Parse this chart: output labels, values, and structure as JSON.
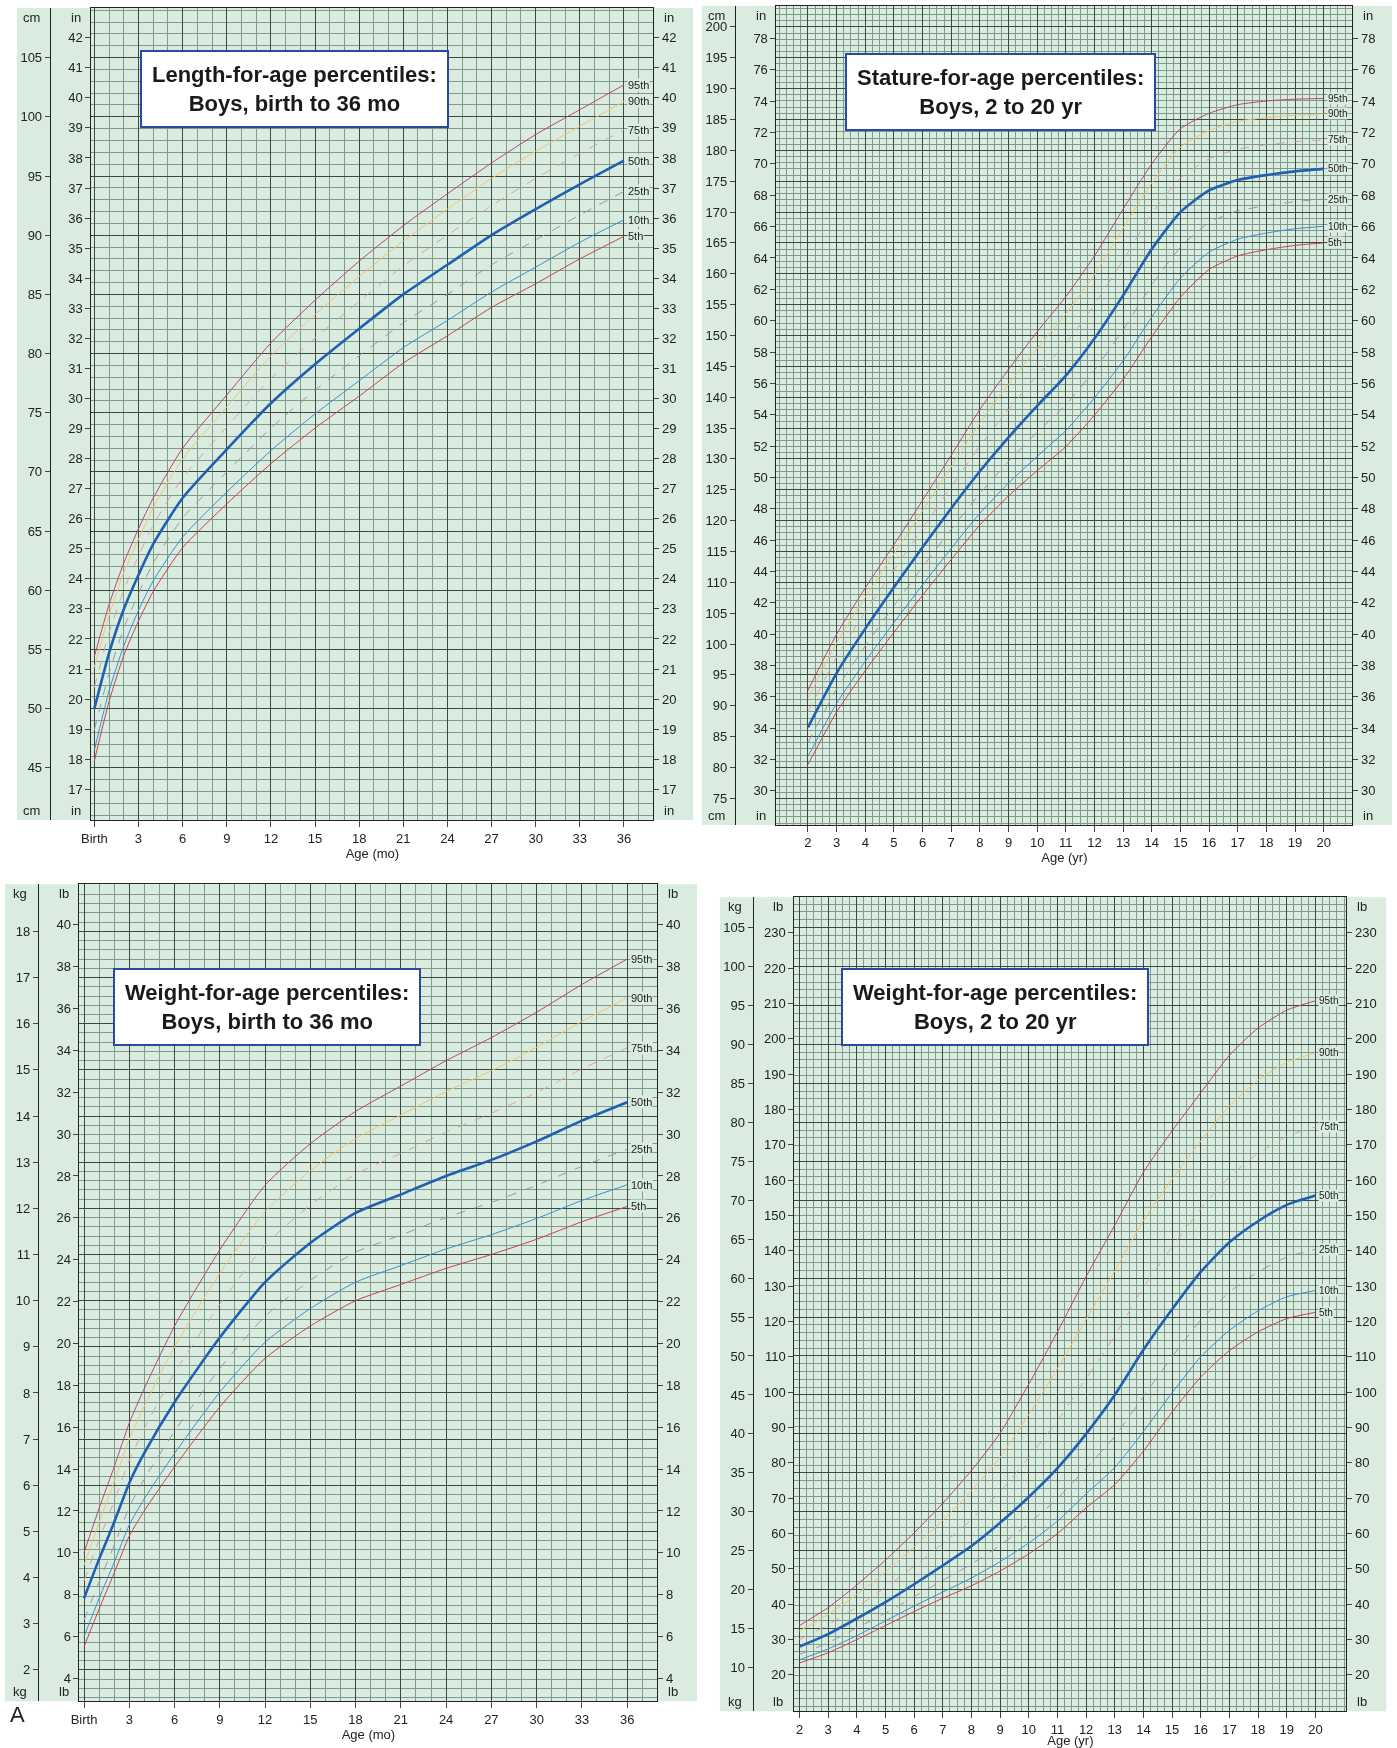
{
  "chart_data": [
    {
      "type": "line",
      "title": "Length-for-age percentiles:\nBoys, birth to 36 mo",
      "xlabel": "Age (mo)",
      "ylabel": "cm",
      "y2label": "in",
      "y3label": "in",
      "grid": true,
      "marker": "none",
      "line_style": "solid",
      "x": [
        0,
        1,
        2,
        3,
        4,
        6,
        9,
        12,
        15,
        18,
        21,
        24,
        27,
        30,
        33,
        36
      ],
      "xlim": [
        -0.2,
        38
      ],
      "xticks": [
        {
          "value": 0,
          "label": "Birth"
        },
        3,
        6,
        9,
        12,
        15,
        18,
        21,
        24,
        27,
        30,
        33,
        36
      ],
      "ylim": [
        40.6,
        109.2
      ],
      "yticks": [
        45,
        50,
        55,
        60,
        65,
        70,
        75,
        80,
        85,
        90,
        95,
        100,
        105
      ],
      "y2lim": [
        15.98,
        42.99
      ],
      "y2ticks": [
        17,
        18,
        19,
        20,
        21,
        22,
        23,
        24,
        25,
        26,
        27,
        28,
        29,
        30,
        31,
        32,
        33,
        34,
        35,
        36,
        37,
        38,
        39,
        40,
        41,
        42
      ],
      "y3lim": [
        15.98,
        42.99
      ],
      "y3ticks": [
        17,
        18,
        19,
        20,
        21,
        22,
        23,
        24,
        25,
        26,
        27,
        28,
        29,
        30,
        31,
        32,
        33,
        34,
        35,
        36,
        37,
        38,
        39,
        40,
        41,
        42
      ],
      "series": [
        {
          "name": "95th",
          "color": "#b5466b",
          "values": [
            54.4,
            58.8,
            62.3,
            65.2,
            67.8,
            72.0,
            76.5,
            80.9,
            84.5,
            87.8,
            90.8,
            93.5,
            96.1,
            98.5,
            100.6,
            102.7
          ]
        },
        {
          "name": "90th",
          "color": "#f0c27a",
          "values": [
            53.5,
            57.9,
            61.5,
            64.3,
            67.0,
            71.1,
            75.5,
            79.8,
            83.3,
            86.5,
            89.5,
            92.2,
            94.8,
            97.1,
            99.2,
            101.3
          ]
        },
        {
          "name": "75th",
          "color": "#d9a0a0",
          "line_style": "dashed",
          "values": [
            51.8,
            56.4,
            60.0,
            62.9,
            65.5,
            69.5,
            73.8,
            77.9,
            81.3,
            84.4,
            87.4,
            90.0,
            92.5,
            94.8,
            96.9,
            98.9
          ]
        },
        {
          "name": "50th",
          "color": "#2060b0",
          "values": [
            50.0,
            54.7,
            58.4,
            61.3,
            63.9,
            67.8,
            71.9,
            75.8,
            79.1,
            82.1,
            85.0,
            87.5,
            90.0,
            92.2,
            94.3,
            96.3
          ]
        },
        {
          "name": "25th",
          "color": "#8a9aa8",
          "line_style": "dashed",
          "values": [
            48.2,
            53.0,
            56.8,
            59.7,
            62.3,
            66.1,
            70.0,
            73.7,
            76.9,
            79.8,
            82.6,
            85.0,
            87.5,
            89.6,
            91.7,
            93.7
          ]
        },
        {
          "name": "10th",
          "color": "#3a8fc8",
          "values": [
            46.5,
            51.5,
            55.3,
            58.3,
            60.8,
            64.5,
            68.3,
            71.8,
            74.9,
            77.7,
            80.5,
            82.8,
            85.2,
            87.3,
            89.4,
            91.3
          ]
        },
        {
          "name": "5th",
          "color": "#c8404f",
          "values": [
            45.6,
            50.6,
            54.5,
            57.4,
            59.9,
            63.6,
            67.3,
            70.7,
            73.7,
            76.4,
            79.2,
            81.5,
            83.9,
            85.9,
            88.0,
            89.9
          ]
        }
      ]
    },
    {
      "type": "line",
      "title": "Stature-for-age percentiles:\nBoys, 2 to 20 yr",
      "xlabel": "Age (yr)",
      "ylabel": "cm",
      "y2label": "in",
      "y3label": "in",
      "grid": true,
      "marker": "none",
      "line_style": "solid",
      "x": [
        2,
        3,
        4,
        5,
        6,
        7,
        8,
        9,
        10,
        11,
        12,
        13,
        14,
        15,
        16,
        17,
        18,
        19,
        20
      ],
      "xlim": [
        0.9,
        21
      ],
      "xticks": [
        2,
        3,
        4,
        5,
        6,
        7,
        8,
        9,
        10,
        11,
        12,
        13,
        14,
        15,
        16,
        17,
        18,
        19,
        20
      ],
      "ylim": [
        70.7,
        203.4
      ],
      "yticks": [
        75,
        80,
        85,
        90,
        95,
        100,
        105,
        110,
        115,
        120,
        125,
        130,
        135,
        140,
        145,
        150,
        155,
        160,
        165,
        170,
        175,
        180,
        185,
        190,
        195,
        200
      ],
      "y2lim": [
        27.83,
        80.08
      ],
      "y2ticks": [
        30,
        32,
        34,
        36,
        38,
        40,
        42,
        44,
        46,
        48,
        50,
        52,
        54,
        56,
        58,
        60,
        62,
        64,
        66,
        68,
        70,
        72,
        74,
        76,
        78
      ],
      "y3lim": [
        27.83,
        80.08
      ],
      "y3ticks": [
        30,
        32,
        34,
        36,
        38,
        40,
        42,
        44,
        46,
        48,
        50,
        52,
        54,
        56,
        58,
        60,
        62,
        64,
        66,
        68,
        70,
        72,
        74,
        76,
        78
      ],
      "series": [
        {
          "name": "95th",
          "color": "#b5466b",
          "values": [
            92.5,
            101.6,
            109.1,
            116.1,
            123.3,
            130.6,
            138.0,
            144.5,
            150.6,
            156.3,
            162.9,
            170.5,
            177.8,
            183.5,
            186.0,
            187.4,
            188.0,
            188.3,
            188.4
          ]
        },
        {
          "name": "90th",
          "color": "#f0c27a",
          "values": [
            91.2,
            100.2,
            107.6,
            114.6,
            121.6,
            128.7,
            135.8,
            142.1,
            147.9,
            153.5,
            159.9,
            167.4,
            174.7,
            180.5,
            183.2,
            184.7,
            185.3,
            185.7,
            185.9
          ]
        },
        {
          "name": "75th",
          "color": "#d9a0a0",
          "line_style": "dashed",
          "values": [
            89.0,
            97.9,
            105.2,
            112.0,
            118.8,
            125.5,
            132.1,
            138.0,
            143.5,
            148.7,
            155.0,
            162.2,
            169.7,
            175.5,
            178.6,
            180.2,
            180.9,
            181.4,
            181.7
          ]
        },
        {
          "name": "50th",
          "color": "#2060b0",
          "values": [
            86.5,
            95.3,
            102.5,
            109.2,
            115.7,
            122.0,
            128.0,
            133.5,
            138.6,
            143.5,
            149.5,
            156.5,
            164.0,
            170.0,
            173.5,
            175.2,
            176.0,
            176.6,
            177.0
          ]
        },
        {
          "name": "25th",
          "color": "#8a9aa8",
          "line_style": "dashed",
          "values": [
            84.0,
            92.7,
            99.7,
            106.2,
            112.5,
            118.6,
            124.4,
            129.6,
            134.3,
            138.8,
            144.4,
            150.9,
            158.2,
            164.3,
            168.3,
            170.2,
            171.0,
            171.7,
            172.1
          ]
        },
        {
          "name": "10th",
          "color": "#3a8fc8",
          "values": [
            81.8,
            90.4,
            97.2,
            103.5,
            109.6,
            115.5,
            121.2,
            126.1,
            130.4,
            134.6,
            139.9,
            145.9,
            153.0,
            159.3,
            163.5,
            165.6,
            166.6,
            167.3,
            167.7
          ]
        },
        {
          "name": "5th",
          "color": "#c8404f",
          "values": [
            80.5,
            89.0,
            95.7,
            101.9,
            107.9,
            113.7,
            119.3,
            124.0,
            128.1,
            132.0,
            137.1,
            142.9,
            149.8,
            156.2,
            160.7,
            162.9,
            163.9,
            164.6,
            165.0
          ]
        }
      ]
    },
    {
      "type": "line",
      "title": "Weight-for-age percentiles:\nBoys, birth to 36 mo",
      "xlabel": "Age (mo)",
      "ylabel": "kg",
      "y2label": "lb",
      "y3label": "lb",
      "grid": true,
      "marker": "none",
      "line_style": "solid",
      "annotations": [
        "A"
      ],
      "x": [
        0,
        1,
        2,
        3,
        4,
        6,
        9,
        12,
        15,
        18,
        21,
        24,
        27,
        30,
        33,
        36
      ],
      "xlim": [
        -0.3,
        38
      ],
      "xticks": [
        {
          "value": 0,
          "label": "Birth"
        },
        3,
        6,
        9,
        12,
        15,
        18,
        21,
        24,
        27,
        30,
        33,
        36
      ],
      "ylim": [
        1.32,
        19.02
      ],
      "yticks": [
        2,
        3,
        4,
        5,
        6,
        7,
        8,
        9,
        10,
        11,
        12,
        13,
        14,
        15,
        16,
        17,
        18
      ],
      "y2lim": [
        2.91,
        41.93
      ],
      "y2ticks": [
        4,
        6,
        8,
        10,
        12,
        14,
        16,
        18,
        20,
        22,
        24,
        26,
        28,
        30,
        32,
        34,
        36,
        38,
        40
      ],
      "y3lim": [
        2.91,
        41.93
      ],
      "y3ticks": [
        4,
        6,
        8,
        10,
        12,
        14,
        16,
        18,
        20,
        22,
        24,
        26,
        28,
        30,
        32,
        34,
        36,
        38,
        40
      ],
      "series": [
        {
          "name": "95th",
          "color": "#b5466b",
          "values": [
            4.54,
            5.5,
            6.4,
            7.35,
            8.1,
            9.45,
            11.1,
            12.5,
            13.4,
            14.1,
            14.65,
            15.2,
            15.7,
            16.25,
            16.85,
            17.4
          ]
        },
        {
          "name": "90th",
          "color": "#f0c27a",
          "values": [
            4.27,
            5.2,
            6.08,
            7.0,
            7.72,
            9.0,
            10.59,
            11.93,
            12.82,
            13.51,
            14.02,
            14.53,
            14.98,
            15.49,
            16.05,
            16.56
          ]
        },
        {
          "name": "75th",
          "color": "#d9a0a0",
          "line_style": "dashed",
          "values": [
            3.93,
            4.82,
            5.66,
            6.54,
            7.23,
            8.43,
            9.92,
            11.2,
            12.07,
            12.74,
            13.19,
            13.65,
            14.06,
            14.51,
            15.02,
            15.48
          ]
        },
        {
          "name": "50th",
          "color": "#2060b0",
          "values": [
            3.55,
            4.4,
            5.2,
            6.05,
            6.7,
            7.8,
            9.2,
            10.4,
            11.25,
            11.9,
            12.3,
            12.7,
            13.05,
            13.45,
            13.9,
            14.3
          ]
        },
        {
          "name": "25th",
          "color": "#8a9aa8",
          "line_style": "dashed",
          "values": [
            3.08,
            3.91,
            4.7,
            5.53,
            6.14,
            7.17,
            8.53,
            9.66,
            10.44,
            11.05,
            11.42,
            11.8,
            12.13,
            12.5,
            12.91,
            13.28
          ]
        },
        {
          "name": "10th",
          "color": "#3a8fc8",
          "values": [
            2.72,
            3.55,
            4.33,
            5.14,
            5.71,
            6.69,
            8.02,
            9.1,
            9.83,
            10.4,
            10.76,
            11.12,
            11.43,
            11.78,
            12.17,
            12.51
          ]
        },
        {
          "name": "5th",
          "color": "#c8404f",
          "values": [
            2.5,
            3.32,
            4.1,
            4.9,
            5.45,
            6.4,
            7.7,
            8.75,
            9.45,
            10.0,
            10.35,
            10.7,
            11.0,
            11.33,
            11.71,
            12.04
          ]
        }
      ]
    },
    {
      "type": "line",
      "title": "Weight-for-age percentiles:\nBoys, 2 to 20 yr",
      "xlabel": "Age (yr)",
      "ylabel": "kg",
      "y2label": "lb",
      "y3label": "lb",
      "grid": true,
      "marker": "none",
      "line_style": "solid",
      "x": [
        2,
        3,
        4,
        5,
        6,
        7,
        8,
        9,
        10,
        11,
        12,
        13,
        14,
        15,
        16,
        17,
        18,
        19,
        20
      ],
      "xlim": [
        1.82,
        21.08
      ],
      "xticks": [
        2,
        3,
        4,
        5,
        6,
        7,
        8,
        9,
        10,
        11,
        12,
        13,
        14,
        15,
        16,
        17,
        18,
        19,
        20
      ],
      "ylim": [
        4.4,
        108.9
      ],
      "yticks": [
        10,
        15,
        20,
        25,
        30,
        35,
        40,
        45,
        50,
        55,
        60,
        65,
        70,
        75,
        80,
        85,
        90,
        95,
        100,
        105
      ],
      "y2lim": [
        9.7,
        240.1
      ],
      "y2ticks": [
        20,
        30,
        40,
        50,
        60,
        70,
        80,
        90,
        100,
        110,
        120,
        130,
        140,
        150,
        160,
        170,
        180,
        190,
        200,
        210,
        220,
        230
      ],
      "y3lim": [
        9.7,
        240.1
      ],
      "y3ticks": [
        20,
        30,
        40,
        50,
        60,
        70,
        80,
        90,
        100,
        110,
        120,
        130,
        140,
        150,
        160,
        170,
        180,
        190,
        200,
        210,
        220,
        230
      ],
      "series": [
        {
          "name": "95th",
          "color": "#b5466b",
          "values": [
            15.4,
            17.7,
            20.6,
            23.8,
            27.3,
            31.1,
            35.3,
            40.1,
            46.4,
            53.1,
            60.2,
            66.8,
            73.6,
            78.9,
            83.8,
            88.6,
            92.1,
            94.4,
            95.6
          ]
        },
        {
          "name": "90th",
          "color": "#f0c27a",
          "values": [
            14.7,
            16.8,
            19.4,
            22.3,
            25.5,
            28.9,
            32.7,
            37.0,
            42.5,
            48.4,
            54.7,
            60.9,
            67.4,
            72.7,
            77.6,
            82.1,
            85.4,
            87.7,
            88.9
          ]
        },
        {
          "name": "75th",
          "color": "#d9a0a0",
          "line_style": "dashed",
          "values": [
            13.6,
            15.5,
            17.8,
            20.3,
            23.0,
            25.9,
            29.0,
            32.6,
            37.0,
            41.7,
            47.1,
            52.6,
            58.8,
            64.0,
            68.9,
            73.0,
            76.0,
            78.2,
            79.4
          ]
        },
        {
          "name": "50th",
          "color": "#2060b0",
          "values": [
            12.7,
            14.3,
            16.3,
            18.4,
            20.7,
            23.1,
            25.6,
            28.6,
            31.9,
            35.6,
            40.0,
            45.0,
            50.8,
            56.0,
            60.8,
            64.6,
            67.3,
            69.4,
            70.6
          ]
        },
        {
          "name": "25th",
          "color": "#8a9aa8",
          "line_style": "dashed",
          "values": [
            11.7,
            13.2,
            15.1,
            17.0,
            19.1,
            21.2,
            23.3,
            25.7,
            28.5,
            31.7,
            35.6,
            39.7,
            44.8,
            49.9,
            54.6,
            58.2,
            60.8,
            62.7,
            63.7
          ]
        },
        {
          "name": "10th",
          "color": "#3a8fc8",
          "values": [
            11.0,
            12.4,
            14.1,
            16.0,
            17.9,
            19.7,
            21.5,
            23.6,
            26.0,
            28.8,
            32.3,
            35.7,
            40.3,
            45.3,
            49.9,
            53.3,
            55.8,
            57.6,
            58.4
          ]
        },
        {
          "name": "5th",
          "color": "#c8404f",
          "values": [
            10.6,
            11.9,
            13.6,
            15.4,
            17.2,
            18.9,
            20.5,
            22.4,
            24.6,
            27.2,
            30.5,
            33.5,
            37.8,
            42.8,
            47.3,
            50.7,
            53.1,
            54.8,
            55.6
          ]
        }
      ]
    }
  ]
}
